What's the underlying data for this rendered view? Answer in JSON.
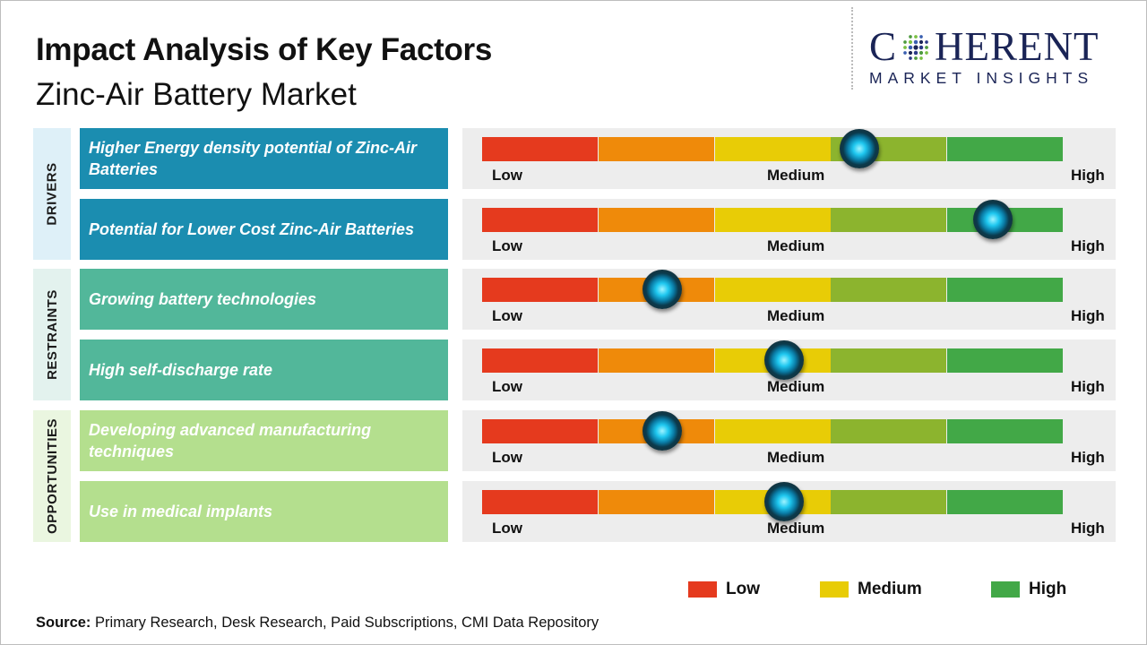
{
  "header": {
    "title": "Impact Analysis of Key Factors",
    "subtitle": "Zinc-Air Battery Market"
  },
  "logo": {
    "word_left": "C",
    "word_right": "HERENT",
    "tagline": "MARKET INSIGHTS"
  },
  "colors": {
    "drivers": "#1b8db0",
    "restraints": "#52b79a",
    "opportunities": "#b4df8e",
    "drivers_band": "#def0f8",
    "restraints_band": "#e3f2ee",
    "opportunities_band": "#eaf6e0",
    "scale": [
      "#e53a1e",
      "#ef8a0a",
      "#e8cc06",
      "#8cb42e",
      "#42a847"
    ],
    "legend_low": "#e53a1e",
    "legend_medium": "#e8cc06",
    "legend_high": "#42a847"
  },
  "categories": [
    {
      "label": "DRIVERS"
    },
    {
      "label": "RESTRAINTS"
    },
    {
      "label": "OPPORTUNITIES"
    }
  ],
  "scale_labels": {
    "low": "Low",
    "medium": "Medium",
    "high": "High"
  },
  "chart_data": {
    "type": "gauge",
    "scale_min": 0,
    "scale_max": 5,
    "scale_labels": [
      "Low",
      "Medium",
      "High"
    ],
    "factors": [
      {
        "category": "DRIVERS",
        "label": "Higher Energy density potential of Zinc-Air Batteries",
        "impact": 3.25
      },
      {
        "category": "DRIVERS",
        "label": "Potential for Lower Cost Zinc-Air Batteries",
        "impact": 4.4
      },
      {
        "category": "RESTRAINTS",
        "label": "Growing battery technologies",
        "impact": 1.55
      },
      {
        "category": "RESTRAINTS",
        "label": "High self-discharge rate",
        "impact": 2.6
      },
      {
        "category": "OPPORTUNITIES",
        "label": "Developing advanced manufacturing techniques",
        "impact": 1.55
      },
      {
        "category": "OPPORTUNITIES",
        "label": "Use in medical implants",
        "impact": 2.6
      }
    ]
  },
  "legend": [
    {
      "label": "Low"
    },
    {
      "label": "Medium"
    },
    {
      "label": "High"
    }
  ],
  "source": {
    "prefix": "Source:",
    "text": " Primary Research, Desk Research, Paid Subscriptions, CMI Data Repository"
  }
}
